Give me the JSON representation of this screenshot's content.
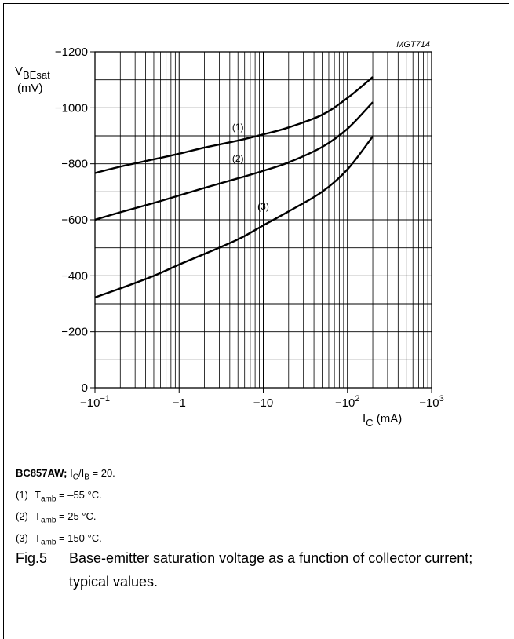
{
  "chart_data": {
    "type": "line",
    "code": "MGT714",
    "ylabel_main": "V",
    "ylabel_sub": "BEsat",
    "ylabel_unit": "(mV)",
    "xlabel_main": "I",
    "xlabel_sub": "C",
    "xlabel_unit": "(mA)",
    "x_scale": "log",
    "x_ticks": [
      {
        "value": 0.1,
        "base": "−10",
        "exp": "−1"
      },
      {
        "value": 1,
        "base": "−1",
        "exp": ""
      },
      {
        "value": 10,
        "base": "−10",
        "exp": ""
      },
      {
        "value": 100,
        "base": "−10",
        "exp": "2"
      },
      {
        "value": 1000,
        "base": "−10",
        "exp": "3"
      }
    ],
    "y_ticks": [
      {
        "value": 0,
        "label": "0"
      },
      {
        "value": 200,
        "label": "−200"
      },
      {
        "value": 400,
        "label": "−400"
      },
      {
        "value": 600,
        "label": "−600"
      },
      {
        "value": 800,
        "label": "−800"
      },
      {
        "value": 1000,
        "label": "−1000"
      },
      {
        "value": 1200,
        "label": "−1200"
      }
    ],
    "xlim": [
      0.1,
      1000
    ],
    "ylim": [
      0,
      1200
    ],
    "grid": true,
    "series": [
      {
        "name": "(1)",
        "label_at": [
          5,
          920
        ],
        "x": [
          0.1,
          0.2,
          0.5,
          1,
          2,
          5,
          10,
          20,
          50,
          100,
          200
        ],
        "y": [
          767,
          790,
          816,
          836,
          858,
          883,
          905,
          930,
          975,
          1035,
          1110
        ]
      },
      {
        "name": "(2)",
        "label_at": [
          5,
          808
        ],
        "x": [
          0.1,
          0.2,
          0.5,
          1,
          2,
          5,
          10,
          20,
          50,
          100,
          200
        ],
        "y": [
          600,
          627,
          660,
          687,
          714,
          748,
          775,
          805,
          860,
          925,
          1020
        ]
      },
      {
        "name": "(3)",
        "label_at": [
          10,
          637
        ],
        "x": [
          0.1,
          0.2,
          0.5,
          1,
          2,
          5,
          10,
          20,
          50,
          100,
          200
        ],
        "y": [
          323,
          355,
          400,
          440,
          478,
          530,
          580,
          630,
          700,
          780,
          898
        ]
      }
    ]
  },
  "notes": {
    "device": "BC857AW;",
    "cond_I1": "I",
    "cond_sub1": "C",
    "cond_slash": "/I",
    "cond_sub2": "B",
    "cond_tail": " = 20.",
    "items": [
      {
        "num": "(1)",
        "T": "T",
        "sub": "amb",
        "val": " = –55 °C."
      },
      {
        "num": "(2)",
        "T": "T",
        "sub": "amb",
        "val": " = 25 °C."
      },
      {
        "num": "(3)",
        "T": "T",
        "sub": "amb",
        "val": " = 150 °C."
      }
    ]
  },
  "figure": {
    "number": "Fig.5",
    "caption": "Base-emitter saturation voltage as a function of collector current; typical values."
  }
}
